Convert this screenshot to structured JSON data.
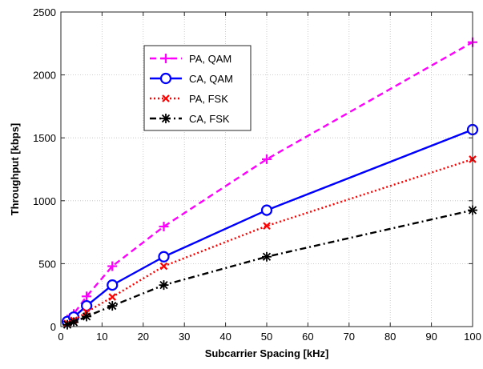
{
  "chart_data": {
    "type": "line",
    "xlabel": "Subcarrier Spacing [kHz]",
    "ylabel": "Throughput [kbps]",
    "xlim": [
      0,
      100
    ],
    "ylim": [
      0,
      2500
    ],
    "xticks": [
      0,
      10,
      20,
      30,
      40,
      50,
      60,
      70,
      80,
      90,
      100
    ],
    "yticks": [
      0,
      500,
      1000,
      1500,
      2000,
      2500
    ],
    "grid": true,
    "legend_position": "top-left",
    "x": [
      1.5625,
      3.125,
      6.25,
      12.5,
      25,
      50,
      100
    ],
    "series": [
      {
        "name": "PA, QAM",
        "values": [
          56,
          100,
          240,
          480,
          795,
          1330,
          2260
        ],
        "color": "#ff00ff",
        "dash": "dashed",
        "marker": "plus"
      },
      {
        "name": "CA, QAM",
        "values": [
          40,
          75,
          165,
          330,
          555,
          925,
          1565
        ],
        "color": "#0000ff",
        "dash": "solid",
        "marker": "circle"
      },
      {
        "name": "PA, FSK",
        "values": [
          25,
          50,
          115,
          235,
          480,
          800,
          1330
        ],
        "color": "#ff0000",
        "dash": "dotted",
        "marker": "x"
      },
      {
        "name": "CA, FSK",
        "values": [
          15,
          35,
          80,
          165,
          330,
          555,
          925
        ],
        "color": "#000000",
        "dash": "dashdot",
        "marker": "star"
      }
    ]
  }
}
